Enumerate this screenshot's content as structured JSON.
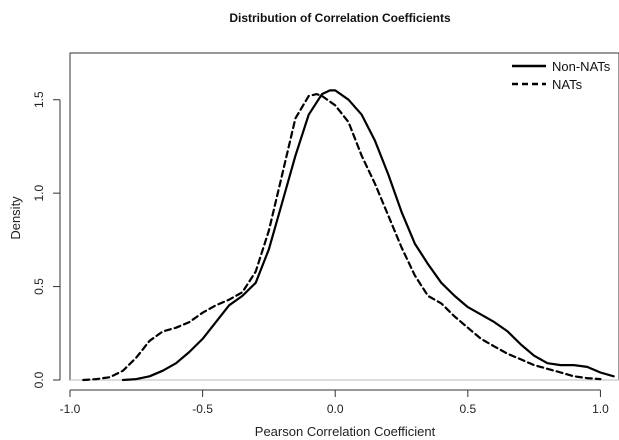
{
  "chart_data": {
    "type": "line",
    "title": "Distribution of Correlation Coefficients",
    "xlabel": "Pearson Correlation Coefficient",
    "ylabel": "Density",
    "xlim": [
      -1.0,
      1.07
    ],
    "ylim": [
      0.0,
      1.75
    ],
    "x_ticks": [
      "-1.0",
      "-0.5",
      "0.0",
      "0.5",
      "1.0"
    ],
    "y_ticks": [
      "0.0",
      "0.5",
      "1.0",
      "1.5"
    ],
    "grid": false,
    "legend_position": "top-right",
    "reference_line": {
      "y": 0,
      "color": "#bbbbbb"
    },
    "series": [
      {
        "name": "Non-NATs",
        "style": "solid",
        "color": "#000000",
        "x": [
          -0.8,
          -0.75,
          -0.7,
          -0.65,
          -0.6,
          -0.55,
          -0.5,
          -0.45,
          -0.4,
          -0.35,
          -0.3,
          -0.25,
          -0.2,
          -0.15,
          -0.1,
          -0.05,
          -0.02,
          0.0,
          0.05,
          0.1,
          0.15,
          0.2,
          0.25,
          0.3,
          0.35,
          0.4,
          0.45,
          0.5,
          0.55,
          0.6,
          0.65,
          0.7,
          0.75,
          0.8,
          0.85,
          0.9,
          0.95,
          1.0,
          1.05
        ],
        "y": [
          0.0,
          0.005,
          0.02,
          0.05,
          0.09,
          0.15,
          0.22,
          0.31,
          0.4,
          0.45,
          0.52,
          0.7,
          0.95,
          1.2,
          1.42,
          1.53,
          1.55,
          1.55,
          1.5,
          1.42,
          1.28,
          1.1,
          0.9,
          0.73,
          0.62,
          0.52,
          0.45,
          0.39,
          0.35,
          0.31,
          0.26,
          0.19,
          0.13,
          0.09,
          0.08,
          0.08,
          0.07,
          0.04,
          0.02
        ]
      },
      {
        "name": "NATs",
        "style": "dashed",
        "color": "#000000",
        "x": [
          -0.95,
          -0.9,
          -0.85,
          -0.8,
          -0.75,
          -0.7,
          -0.65,
          -0.6,
          -0.55,
          -0.5,
          -0.45,
          -0.4,
          -0.35,
          -0.3,
          -0.25,
          -0.2,
          -0.15,
          -0.1,
          -0.07,
          -0.05,
          0.0,
          0.05,
          0.1,
          0.15,
          0.2,
          0.25,
          0.3,
          0.35,
          0.4,
          0.45,
          0.5,
          0.55,
          0.6,
          0.65,
          0.7,
          0.75,
          0.8,
          0.85,
          0.9,
          0.95,
          1.0
        ],
        "y": [
          0.0,
          0.005,
          0.015,
          0.05,
          0.12,
          0.21,
          0.26,
          0.28,
          0.31,
          0.36,
          0.4,
          0.43,
          0.47,
          0.58,
          0.8,
          1.1,
          1.4,
          1.52,
          1.53,
          1.52,
          1.47,
          1.38,
          1.2,
          1.05,
          0.88,
          0.71,
          0.56,
          0.45,
          0.41,
          0.34,
          0.28,
          0.22,
          0.18,
          0.14,
          0.11,
          0.08,
          0.06,
          0.04,
          0.02,
          0.01,
          0.005
        ]
      }
    ]
  }
}
